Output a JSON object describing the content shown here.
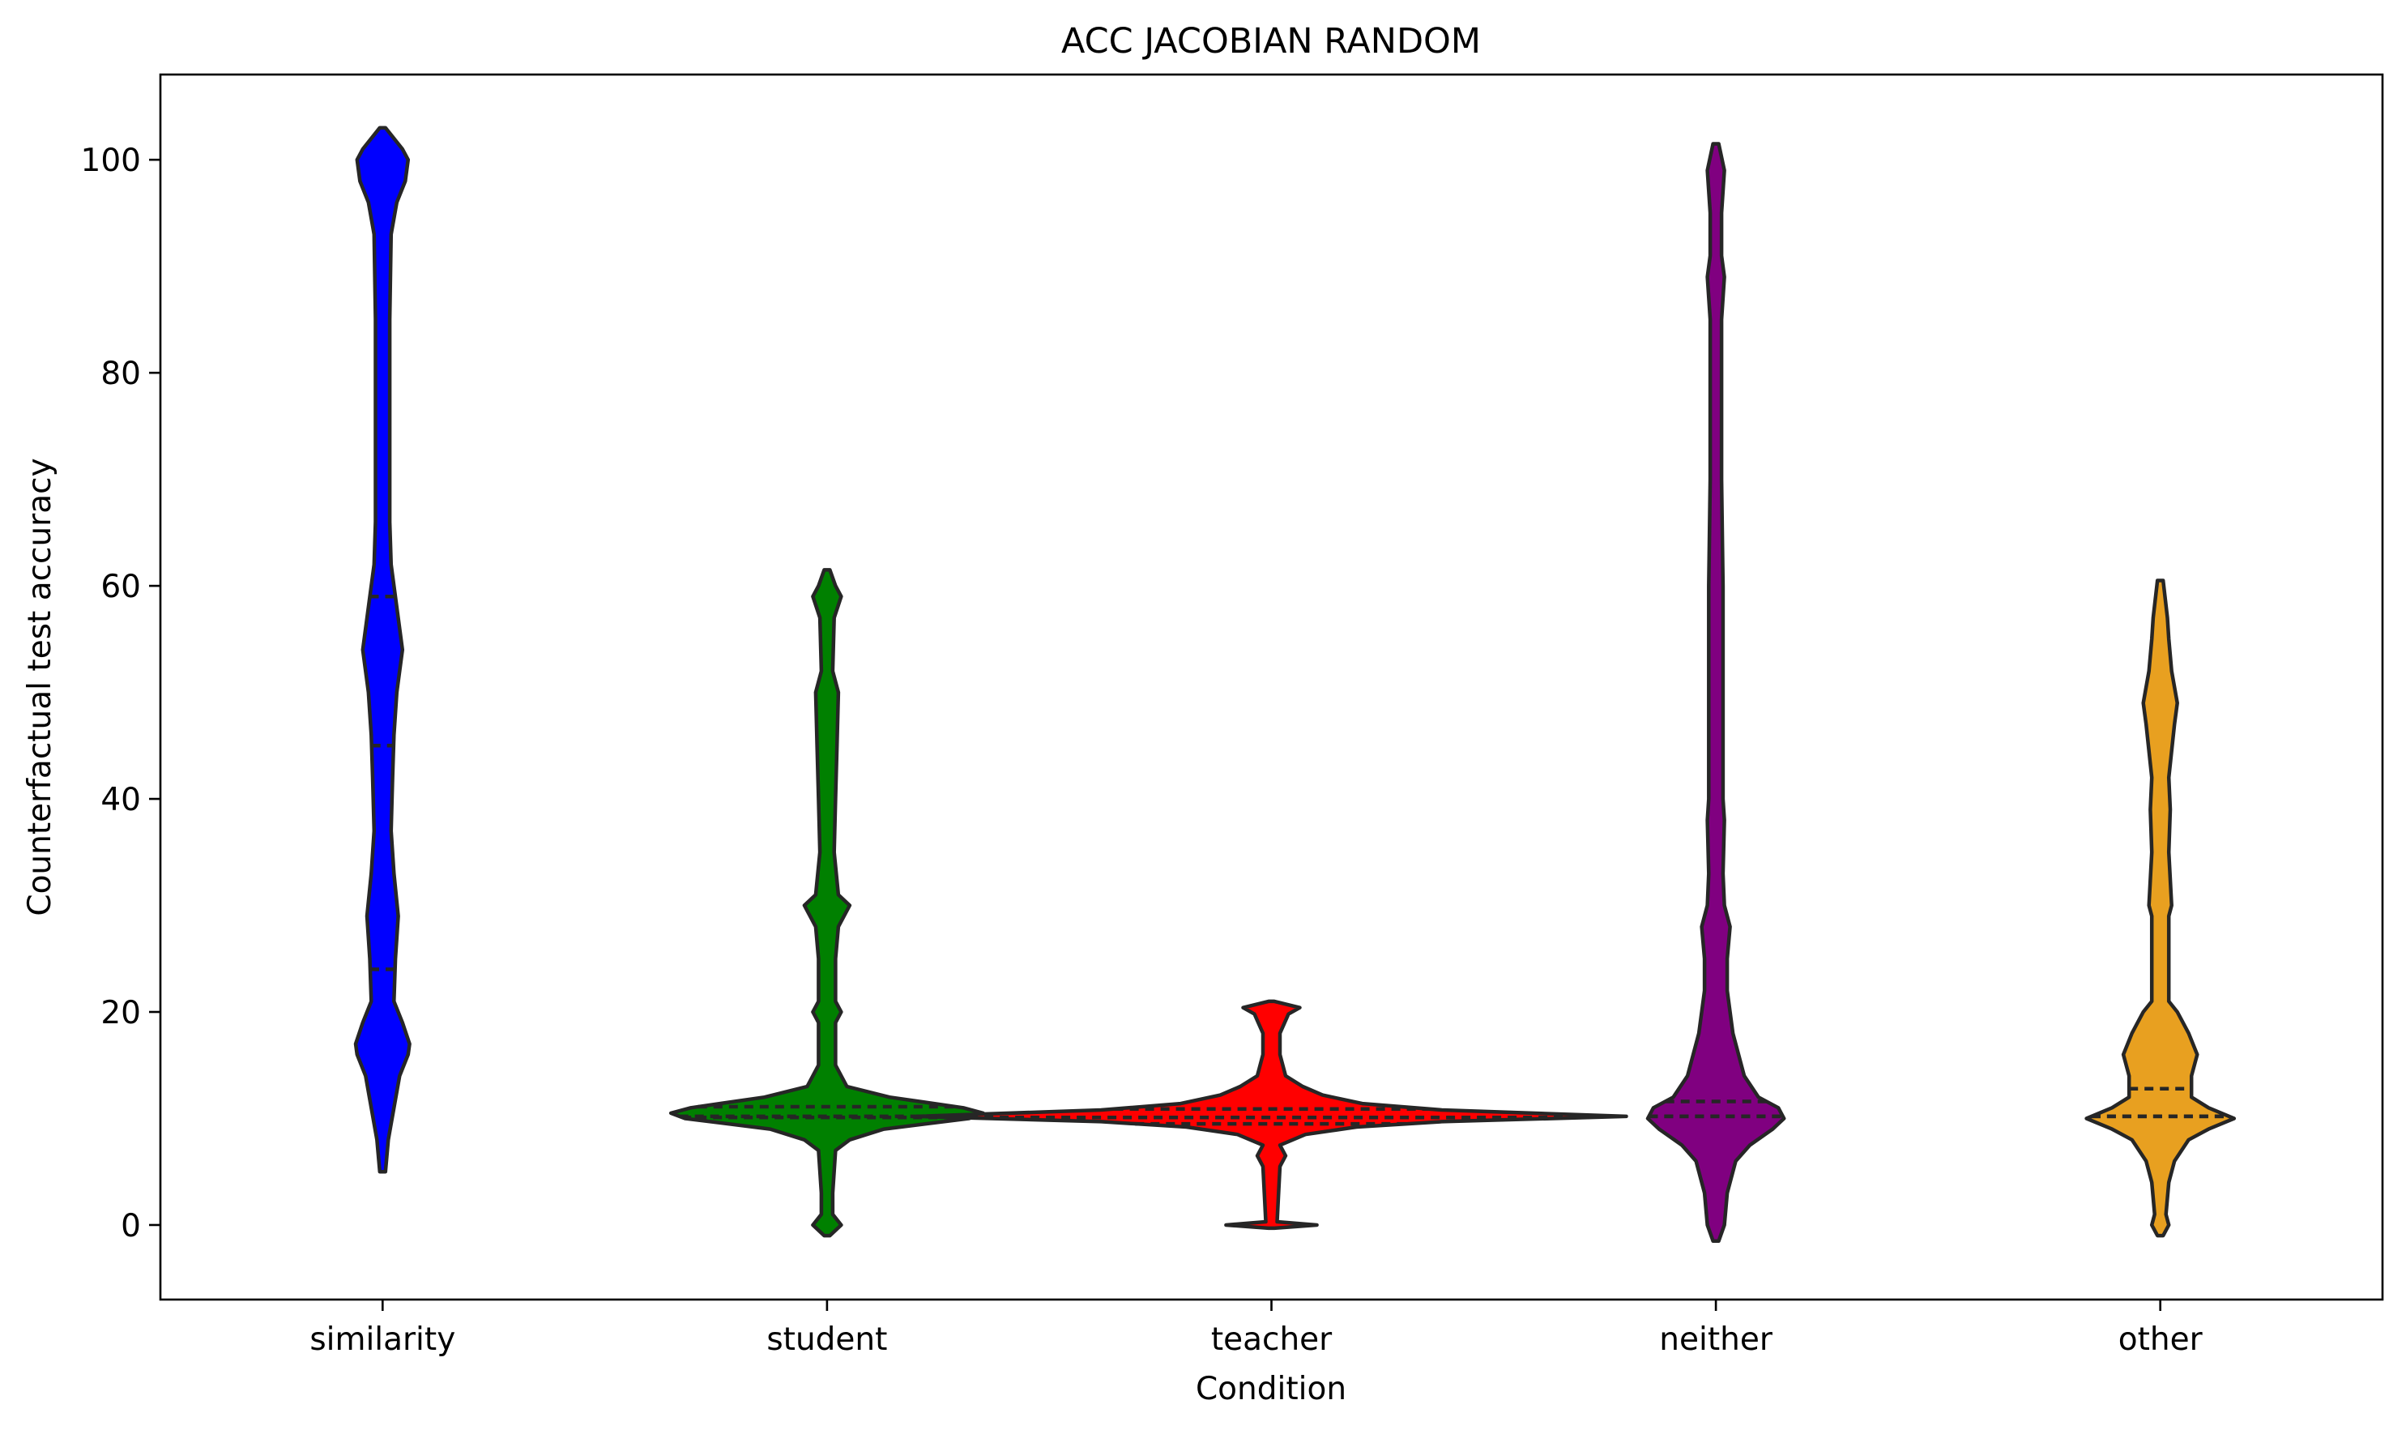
{
  "chart_data": {
    "type": "violin",
    "title": "ACC JACOBIAN RANDOM",
    "xlabel": "Condition",
    "ylabel": "Counterfactual test accuracy",
    "ylim": [
      -7,
      108
    ],
    "yticks": [
      0,
      20,
      40,
      60,
      80,
      100
    ],
    "grid": false,
    "categories": [
      "similarity",
      "student",
      "teacher",
      "neither",
      "other"
    ],
    "series": [
      {
        "category": "similarity",
        "color": "#0000ff",
        "min": 5,
        "max": 103,
        "q1": 24,
        "median": 45,
        "q3": 59,
        "density": [
          [
            5,
            1
          ],
          [
            8,
            2
          ],
          [
            11,
            4
          ],
          [
            14,
            6
          ],
          [
            16,
            9
          ],
          [
            17,
            9.5
          ],
          [
            19,
            7
          ],
          [
            21,
            4
          ],
          [
            25,
            4.5
          ],
          [
            29,
            5.5
          ],
          [
            33,
            4
          ],
          [
            37,
            3
          ],
          [
            42,
            3.5
          ],
          [
            46,
            4
          ],
          [
            50,
            5
          ],
          [
            54,
            7
          ],
          [
            56,
            6
          ],
          [
            62,
            3
          ],
          [
            66,
            2.5
          ],
          [
            75,
            2.5
          ],
          [
            85,
            2.5
          ],
          [
            93,
            3
          ],
          [
            96,
            5
          ],
          [
            98,
            8
          ],
          [
            100,
            9
          ],
          [
            101,
            7
          ],
          [
            103,
            1
          ]
        ]
      },
      {
        "category": "student",
        "color": "#008000",
        "min": -1,
        "max": 61.5,
        "q1": 10.1,
        "median": 10.2,
        "q3": 11.1,
        "density": [
          [
            -1,
            1
          ],
          [
            0,
            5
          ],
          [
            1,
            2
          ],
          [
            3,
            2
          ],
          [
            7,
            3
          ],
          [
            8,
            8
          ],
          [
            9,
            20
          ],
          [
            10,
            50
          ],
          [
            10.5,
            55
          ],
          [
            11,
            48
          ],
          [
            12,
            22
          ],
          [
            13,
            7
          ],
          [
            15,
            3
          ],
          [
            19,
            3
          ],
          [
            20,
            5
          ],
          [
            21,
            3
          ],
          [
            25,
            3
          ],
          [
            28,
            4
          ],
          [
            30,
            8
          ],
          [
            31,
            4
          ],
          [
            35,
            2.5
          ],
          [
            40,
            3
          ],
          [
            45,
            3.5
          ],
          [
            50,
            4
          ],
          [
            52,
            2
          ],
          [
            57,
            2.5
          ],
          [
            59,
            5
          ],
          [
            60,
            3
          ],
          [
            61.5,
            1
          ]
        ]
      },
      {
        "category": "teacher",
        "color": "#ff0000",
        "min": -0.3,
        "max": 21,
        "q1": 9.5,
        "median": 10.1,
        "q3": 10.9,
        "density": [
          [
            -0.3,
            1
          ],
          [
            0,
            16
          ],
          [
            0.3,
            2
          ],
          [
            3,
            2.5
          ],
          [
            5.5,
            3
          ],
          [
            6.5,
            5
          ],
          [
            7.5,
            3
          ],
          [
            8.5,
            12
          ],
          [
            9.2,
            30
          ],
          [
            9.7,
            60
          ],
          [
            10.2,
            125
          ],
          [
            10.8,
            60
          ],
          [
            11.4,
            32
          ],
          [
            12.2,
            18
          ],
          [
            13,
            11
          ],
          [
            14,
            5
          ],
          [
            16,
            3
          ],
          [
            18,
            3
          ],
          [
            19.8,
            6
          ],
          [
            20.4,
            10
          ],
          [
            21,
            1
          ]
        ]
      },
      {
        "category": "neither",
        "color": "#800080",
        "min": -1.5,
        "max": 101.5,
        "q1": 10.2,
        "median": 10.2,
        "q3": 11.6,
        "density": [
          [
            -1.5,
            1
          ],
          [
            0,
            3
          ],
          [
            3,
            4
          ],
          [
            6,
            7
          ],
          [
            7.5,
            12
          ],
          [
            9,
            20
          ],
          [
            10,
            24
          ],
          [
            11,
            22
          ],
          [
            12,
            15
          ],
          [
            14,
            10
          ],
          [
            16,
            8
          ],
          [
            18,
            6
          ],
          [
            20,
            5
          ],
          [
            22,
            4
          ],
          [
            25,
            4
          ],
          [
            28,
            5
          ],
          [
            30,
            3
          ],
          [
            33,
            2.5
          ],
          [
            38,
            3
          ],
          [
            40,
            2.5
          ],
          [
            45,
            2.5
          ],
          [
            60,
            2.5
          ],
          [
            70,
            2
          ],
          [
            85,
            2
          ],
          [
            89,
            3
          ],
          [
            91,
            2
          ],
          [
            95,
            2
          ],
          [
            99,
            3
          ],
          [
            101.5,
            1
          ]
        ]
      },
      {
        "category": "other",
        "color": "#e8a020",
        "min": -1,
        "max": 60.5,
        "q1": 10.2,
        "median": 10.2,
        "q3": 12.8,
        "density": [
          [
            -1,
            1
          ],
          [
            0,
            3
          ],
          [
            1,
            2
          ],
          [
            4,
            3
          ],
          [
            6,
            5
          ],
          [
            8,
            10
          ],
          [
            9,
            17
          ],
          [
            10,
            26
          ],
          [
            11,
            17
          ],
          [
            12,
            11
          ],
          [
            14,
            11
          ],
          [
            16,
            13
          ],
          [
            18,
            10
          ],
          [
            19.5,
            7
          ],
          [
            20,
            6
          ],
          [
            21,
            3
          ],
          [
            25,
            3
          ],
          [
            29,
            3
          ],
          [
            30,
            4
          ],
          [
            35,
            3
          ],
          [
            39,
            3.5
          ],
          [
            42,
            3
          ],
          [
            47,
            5
          ],
          [
            49,
            6
          ],
          [
            52,
            4
          ],
          [
            55,
            3
          ],
          [
            57,
            2.5
          ],
          [
            60.5,
            1
          ]
        ]
      }
    ]
  }
}
